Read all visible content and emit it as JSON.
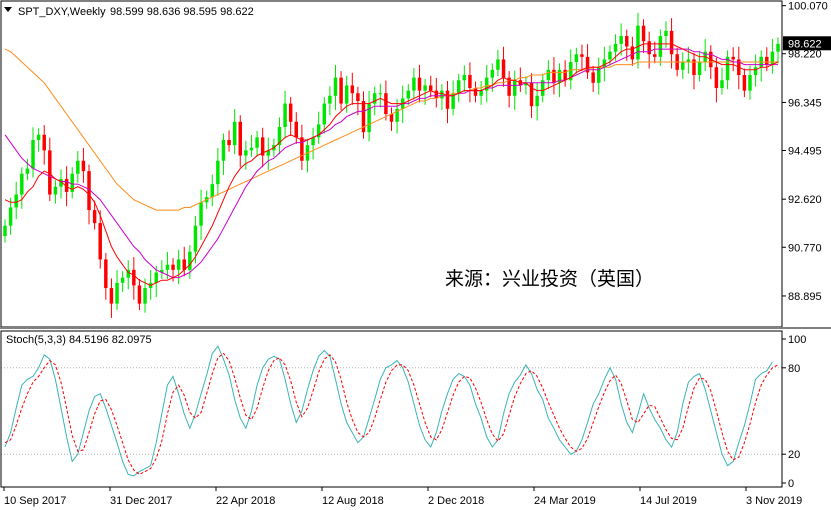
{
  "header": {
    "symbol": "SPT_DXY,Weekly",
    "ohlc": "98.599 98.636 98.595 98.622"
  },
  "watermark": "来源：兴业投资（英国）",
  "stoch_header": "Stoch(5,3,3) 84.5196 82.0975",
  "colors": {
    "up": "#00e600",
    "down": "#ff0000",
    "ma_fast": "#ff0000",
    "ma_mid": "#cc00cc",
    "ma_slow": "#ff8c1a",
    "stoch_main": "#3cb4b4",
    "stoch_signal": "#ff0000",
    "last_price_bg": "#000000"
  },
  "chart_data": [
    {
      "type": "candlestick",
      "title": "SPT_DXY,Weekly",
      "price_axis_ticks": [
        "100.070",
        "98.220",
        "96.345",
        "94.495",
        "92.620",
        "90.770",
        "88.895"
      ],
      "last_price": "98.622",
      "ylim": [
        87.7,
        100.25
      ],
      "x_tick_labels": [
        "10 Sep 2017",
        "31 Dec 2017",
        "22 Apr 2018",
        "12 Aug 2018",
        "2 Dec 2018",
        "24 Mar 2019",
        "14 Jul 2019",
        "3 Nov 2019"
      ],
      "series": [
        {
          "name": "close",
          "values": [
            91.6,
            92.3,
            92.8,
            93.6,
            93.8,
            94.9,
            95.1,
            94.5,
            92.8,
            93.1,
            93.4,
            92.9,
            93.6,
            94.1,
            93.7,
            92.2,
            91.7,
            90.3,
            89.2,
            88.6,
            89.4,
            89.6,
            89.9,
            89.3,
            88.6,
            89.2,
            89.4,
            89.8,
            89.9,
            90.1,
            89.9,
            90.3,
            89.9,
            90.6,
            91.6,
            92.5,
            92.7,
            93.2,
            94.1,
            94.9,
            94.7,
            95.6,
            94.3,
            94.5,
            94.6,
            95.0,
            94.3,
            94.5,
            94.7,
            95.4,
            96.3,
            95.6,
            95.0,
            94.1,
            94.7,
            95.0,
            95.5,
            96.3,
            96.6,
            97.3,
            96.3,
            97.0,
            96.7,
            96.4,
            95.2,
            96.3,
            96.7,
            96.7,
            95.9,
            95.6,
            96.1,
            96.5,
            96.8,
            97.3,
            96.8,
            97.0,
            96.8,
            96.5,
            96.8,
            96.1,
            96.7,
            97.2,
            97.4,
            96.9,
            96.6,
            96.8,
            97.3,
            97.6,
            98.0,
            97.3,
            96.6,
            97.2,
            97.0,
            97.1,
            96.2,
            96.6,
            97.2,
            97.6,
            97.1,
            97.6,
            97.2,
            97.9,
            98.2,
            98.1,
            97.5,
            97.1,
            97.7,
            98.0,
            98.3,
            98.6,
            98.9,
            98.5,
            98.0,
            99.3,
            98.7,
            98.2,
            98.1,
            98.9,
            99.1,
            98.2,
            97.6,
            97.9,
            98.0,
            97.4,
            97.9,
            98.3,
            97.7,
            96.9,
            97.2,
            98.1,
            98.0,
            97.4,
            96.8,
            97.4,
            97.7,
            98.1,
            97.8,
            98.3,
            98.6
          ]
        },
        {
          "name": "ma_fast",
          "values": [
            92.6,
            92.5,
            92.5,
            92.6,
            92.9,
            93.1,
            93.5,
            93.7,
            93.6,
            93.4,
            93.3,
            93.1,
            93.0,
            93.1,
            93.0,
            92.8,
            92.5,
            92.0,
            91.4,
            90.8,
            90.4,
            90.1,
            89.8,
            89.7,
            89.5,
            89.4,
            89.3,
            89.4,
            89.5,
            89.5,
            89.6,
            89.7,
            89.9,
            90.1,
            90.4,
            90.8,
            91.2,
            91.6,
            92.1,
            92.6,
            93.1,
            93.5,
            93.8,
            94.0,
            94.1,
            94.3,
            94.4,
            94.5,
            94.6,
            94.8,
            95.0,
            95.1,
            95.0,
            94.9,
            94.9,
            95.0,
            95.1,
            95.3,
            95.5,
            95.8,
            96.0,
            96.2,
            96.3,
            96.3,
            96.3,
            96.3,
            96.4,
            96.5,
            96.4,
            96.3,
            96.3,
            96.3,
            96.4,
            96.5,
            96.6,
            96.7,
            96.8,
            96.7,
            96.7,
            96.6,
            96.6,
            96.7,
            96.8,
            96.8,
            96.8,
            96.8,
            96.9,
            97.0,
            97.2,
            97.3,
            97.2,
            97.2,
            97.1,
            97.1,
            96.9,
            96.8,
            96.8,
            96.9,
            97.0,
            97.1,
            97.2,
            97.3,
            97.5,
            97.6,
            97.7,
            97.7,
            97.7,
            97.8,
            97.9,
            98.1,
            98.3,
            98.4,
            98.4,
            98.5,
            98.6,
            98.6,
            98.6,
            98.6,
            98.6,
            98.6,
            98.5,
            98.4,
            98.3,
            98.2,
            98.1,
            98.1,
            98.0,
            97.9,
            97.8,
            97.8,
            97.8,
            97.7,
            97.6,
            97.6,
            97.6,
            97.7,
            97.7,
            97.8,
            97.9
          ]
        },
        {
          "name": "ma_mid",
          "values": [
            95.1,
            94.8,
            94.5,
            94.2,
            94.0,
            93.8,
            93.7,
            93.6,
            93.5,
            93.4,
            93.3,
            93.3,
            93.2,
            93.2,
            93.1,
            93.0,
            92.8,
            92.6,
            92.3,
            92.0,
            91.7,
            91.4,
            91.1,
            90.8,
            90.6,
            90.3,
            90.1,
            89.9,
            89.8,
            89.7,
            89.6,
            89.6,
            89.7,
            89.8,
            90.0,
            90.2,
            90.5,
            90.8,
            91.1,
            91.5,
            91.9,
            92.3,
            92.7,
            93.1,
            93.4,
            93.7,
            93.9,
            94.1,
            94.2,
            94.4,
            94.6,
            94.7,
            94.8,
            94.8,
            94.9,
            95.0,
            95.1,
            95.2,
            95.3,
            95.5,
            95.6,
            95.8,
            95.9,
            96.0,
            96.0,
            96.1,
            96.2,
            96.2,
            96.2,
            96.2,
            96.2,
            96.3,
            96.3,
            96.4,
            96.5,
            96.5,
            96.6,
            96.6,
            96.6,
            96.6,
            96.6,
            96.7,
            96.7,
            96.8,
            96.8,
            96.8,
            96.9,
            96.9,
            97.0,
            97.0,
            97.0,
            97.0,
            97.0,
            97.1,
            97.1,
            97.1,
            97.1,
            97.1,
            97.1,
            97.2,
            97.2,
            97.3,
            97.4,
            97.5,
            97.6,
            97.6,
            97.6,
            97.7,
            97.8,
            97.9,
            98.0,
            98.1,
            98.2,
            98.3,
            98.3,
            98.3,
            98.4,
            98.4,
            98.4,
            98.4,
            98.4,
            98.4,
            98.4,
            98.3,
            98.3,
            98.2,
            98.2,
            98.1,
            98.0,
            98.0,
            97.9,
            97.9,
            97.8,
            97.8,
            97.8,
            97.8,
            97.8,
            97.8,
            97.8
          ]
        },
        {
          "name": "ma_slow",
          "values": [
            98.4,
            98.3,
            98.1,
            97.9,
            97.7,
            97.5,
            97.3,
            97.1,
            96.8,
            96.5,
            96.2,
            95.9,
            95.6,
            95.3,
            95.0,
            94.7,
            94.4,
            94.1,
            93.8,
            93.5,
            93.2,
            93.0,
            92.8,
            92.6,
            92.5,
            92.4,
            92.3,
            92.2,
            92.2,
            92.2,
            92.2,
            92.2,
            92.3,
            92.3,
            92.4,
            92.5,
            92.6,
            92.7,
            92.8,
            92.9,
            93.0,
            93.1,
            93.2,
            93.3,
            93.4,
            93.5,
            93.6,
            93.7,
            93.8,
            93.9,
            94.0,
            94.1,
            94.2,
            94.3,
            94.4,
            94.5,
            94.6,
            94.7,
            94.8,
            94.9,
            95.0,
            95.1,
            95.2,
            95.3,
            95.4,
            95.5,
            95.6,
            95.7,
            95.8,
            95.9,
            96.0,
            96.1,
            96.2,
            96.3,
            96.4,
            96.4,
            96.5,
            96.5,
            96.6,
            96.6,
            96.7,
            96.7,
            96.8,
            96.8,
            96.9,
            96.9,
            97.0,
            97.0,
            97.1,
            97.1,
            97.2,
            97.2,
            97.3,
            97.3,
            97.4,
            97.4,
            97.4,
            97.5,
            97.5,
            97.5,
            97.5,
            97.6,
            97.6,
            97.6,
            97.6,
            97.7,
            97.7,
            97.7,
            97.7,
            97.8,
            97.8,
            97.8,
            97.8,
            97.9,
            97.9,
            97.9,
            97.9,
            97.9,
            97.9,
            97.9,
            97.9,
            97.9,
            97.9,
            97.9,
            97.9,
            97.9,
            97.9,
            97.9,
            97.9,
            97.9,
            97.9,
            97.9,
            97.9,
            97.9,
            97.9,
            97.9,
            97.9,
            97.9,
            97.9
          ]
        }
      ]
    },
    {
      "type": "line",
      "title": "Stoch(5,3,3) 84.5196 82.0975",
      "price_axis_ticks": [
        "100",
        "80",
        "20",
        "0"
      ],
      "ylim": [
        0,
        100
      ],
      "series": [
        {
          "name": "main",
          "values": [
            25,
            35,
            52,
            68,
            72,
            74,
            80,
            89,
            86,
            72,
            52,
            32,
            15,
            20,
            35,
            50,
            60,
            62,
            52,
            40,
            28,
            15,
            6,
            5,
            8,
            10,
            12,
            28,
            48,
            68,
            74,
            62,
            48,
            38,
            48,
            62,
            75,
            90,
            95,
            86,
            75,
            58,
            45,
            38,
            50,
            68,
            80,
            86,
            88,
            86,
            72,
            55,
            42,
            50,
            65,
            78,
            88,
            92,
            88,
            72,
            55,
            42,
            35,
            28,
            32,
            45,
            58,
            72,
            80,
            82,
            85,
            80,
            70,
            55,
            40,
            30,
            25,
            35,
            50,
            62,
            72,
            76,
            74,
            68,
            55,
            45,
            32,
            25,
            30,
            48,
            62,
            70,
            75,
            82,
            76,
            65,
            58,
            45,
            38,
            30,
            25,
            20,
            22,
            30,
            42,
            55,
            62,
            72,
            80,
            72,
            55,
            42,
            35,
            48,
            62,
            52,
            44,
            38,
            30,
            25,
            35,
            55,
            70,
            74,
            76,
            65,
            50,
            35,
            20,
            12,
            15,
            28,
            40,
            55,
            72,
            76,
            78,
            84
          ]
        },
        {
          "name": "signal",
          "values": [
            28,
            30,
            40,
            52,
            62,
            70,
            74,
            80,
            85,
            82,
            70,
            52,
            33,
            22,
            23,
            35,
            48,
            57,
            58,
            51,
            40,
            28,
            16,
            9,
            6,
            8,
            10,
            17,
            29,
            48,
            63,
            68,
            61,
            49,
            45,
            49,
            62,
            76,
            87,
            90,
            85,
            73,
            59,
            47,
            44,
            52,
            66,
            78,
            85,
            87,
            82,
            71,
            56,
            46,
            52,
            64,
            77,
            86,
            89,
            84,
            72,
            56,
            44,
            35,
            32,
            35,
            45,
            58,
            70,
            78,
            82,
            82,
            78,
            68,
            55,
            42,
            32,
            30,
            37,
            49,
            61,
            70,
            74,
            73,
            66,
            56,
            44,
            34,
            29,
            34,
            47,
            60,
            69,
            76,
            78,
            74,
            66,
            56,
            47,
            38,
            31,
            25,
            22,
            24,
            31,
            42,
            53,
            63,
            71,
            75,
            69,
            57,
            44,
            42,
            48,
            54,
            53,
            45,
            37,
            31,
            30,
            38,
            53,
            66,
            73,
            72,
            64,
            50,
            35,
            22,
            16,
            18,
            28,
            41,
            56,
            68,
            75,
            80,
            82
          ]
        }
      ]
    }
  ]
}
